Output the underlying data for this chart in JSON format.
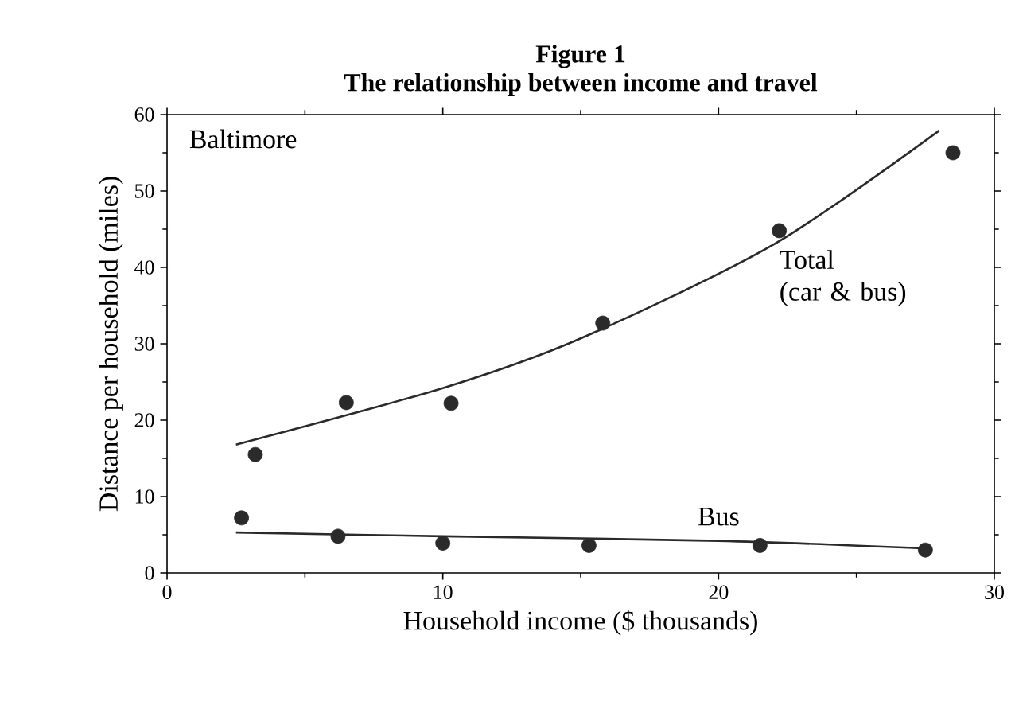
{
  "chart_data": {
    "type": "scatter",
    "title": "Figure 1",
    "subtitle": "The relationship between income and travel",
    "xlabel": "Household income ($ thousands)",
    "ylabel": "Distance per household (miles)",
    "annotations": [
      "Baltimore"
    ],
    "xlim": [
      0,
      30
    ],
    "ylim": [
      0,
      60
    ],
    "xticks": [
      0,
      10,
      20,
      30
    ],
    "yticks": [
      0,
      10,
      20,
      30,
      40,
      50,
      60
    ],
    "grid": false,
    "series": [
      {
        "marker": "circle",
        "color": "#2a2a2a",
        "x": [
          3.2,
          6.5,
          10.3,
          15.8,
          22.2,
          28.5
        ],
        "values": [
          15.5,
          22.3,
          22.2,
          32.7,
          44.8,
          55
        ]
      },
      {
        "marker": "circle",
        "color": "#2a2a2a",
        "x": [
          2.7,
          6.2,
          10,
          15.3,
          21.5,
          27.5
        ],
        "values": [
          7.2,
          4.8,
          3.9,
          3.6,
          3.6,
          3
        ]
      },
      {
        "type": "line",
        "name": "Total (car & bus)",
        "color": "#2a2a2a",
        "line_style": "solid",
        "marker": "none",
        "x": [
          2.5,
          10,
          15,
          22,
          28
        ],
        "values": [
          16.8,
          24.2,
          30.7,
          43,
          57.9
        ]
      },
      {
        "type": "line",
        "name": "Bus",
        "color": "#2a2a2a",
        "line_style": "solid",
        "marker": "none",
        "x": [
          2.5,
          10,
          20,
          27.5
        ],
        "values": [
          5.3,
          4.8,
          4.2,
          3.2
        ]
      }
    ]
  }
}
